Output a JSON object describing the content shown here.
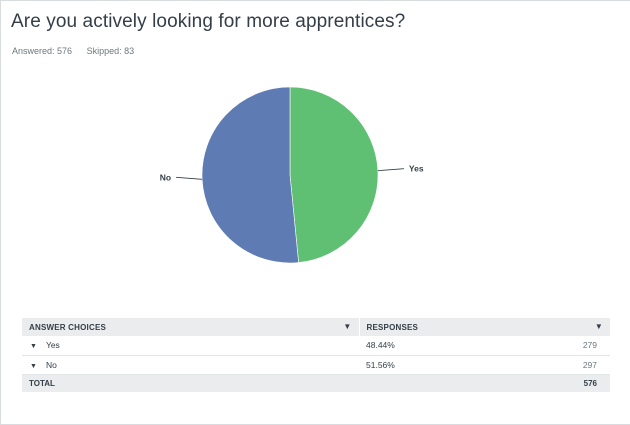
{
  "question": {
    "title": "Are you actively looking for more apprentices?",
    "answered": "Answered: 576",
    "skipped": "Skipped: 83"
  },
  "chart_data": {
    "type": "pie",
    "slices": [
      {
        "label": "Yes",
        "value": 48.44,
        "color": "#5fbf73"
      },
      {
        "label": "No",
        "value": 51.56,
        "color": "#5e7cb3"
      }
    ]
  },
  "table": {
    "headers": {
      "choices": "ANSWER CHOICES",
      "responses": "RESPONSES"
    },
    "rows": [
      {
        "choice": "Yes",
        "percent": "48.44%",
        "count": "279"
      },
      {
        "choice": "No",
        "percent": "51.56%",
        "count": "297"
      }
    ],
    "total": {
      "label": "TOTAL",
      "count": "576"
    }
  }
}
